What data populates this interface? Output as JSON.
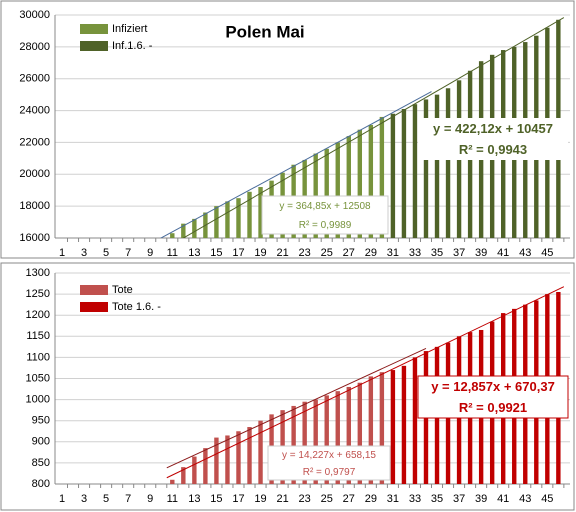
{
  "chart_data": [
    {
      "type": "bar",
      "title": "Polen Mai",
      "categories": [
        1,
        null,
        3,
        null,
        5,
        null,
        7,
        null,
        9,
        null,
        11,
        null,
        13,
        null,
        15,
        null,
        17,
        null,
        19,
        null,
        21,
        null,
        23,
        null,
        25,
        null,
        27,
        null,
        29,
        null,
        31,
        null,
        33,
        null,
        35,
        null,
        37,
        null,
        39,
        null,
        41,
        null,
        43,
        null,
        45,
        null
      ],
      "series": [
        {
          "name": "Infiziert",
          "color": "#77933c",
          "values": [
            null,
            null,
            null,
            null,
            null,
            null,
            null,
            null,
            null,
            null,
            16300,
            16900,
            17200,
            17600,
            18000,
            18300,
            18500,
            18900,
            19200,
            19600,
            20100,
            20600,
            20900,
            21300,
            21600,
            22000,
            22400,
            22800,
            23100,
            23600,
            null,
            null,
            null,
            null,
            null,
            null,
            null,
            null,
            null,
            null,
            null,
            null,
            null,
            null,
            null,
            null
          ]
        },
        {
          "name": "Inf.1.6. -",
          "color": "#4f6228",
          "values": [
            null,
            null,
            null,
            null,
            null,
            null,
            null,
            null,
            null,
            null,
            null,
            null,
            null,
            null,
            null,
            null,
            null,
            null,
            null,
            null,
            null,
            null,
            null,
            null,
            null,
            null,
            null,
            null,
            null,
            null,
            23800,
            24100,
            24400,
            24700,
            25000,
            25400,
            25900,
            26500,
            27100,
            27500,
            27800,
            28000,
            28300,
            28700,
            29200,
            29700
          ]
        }
      ],
      "ylim": [
        16000,
        30000
      ],
      "yticks": [
        16000,
        18000,
        20000,
        22000,
        24000,
        26000,
        28000,
        30000
      ],
      "grid": true,
      "legend": "upper left",
      "annotations": [
        [
          "y = 364,85x + 12508",
          "R² = 0,9989"
        ],
        [
          "y = 422,12x + 10457",
          "R² = 0,9943"
        ]
      ]
    },
    {
      "type": "bar",
      "categories": [
        1,
        null,
        3,
        null,
        5,
        null,
        7,
        null,
        9,
        null,
        11,
        null,
        13,
        null,
        15,
        null,
        17,
        null,
        19,
        null,
        21,
        null,
        23,
        null,
        25,
        null,
        27,
        null,
        29,
        null,
        31,
        null,
        33,
        null,
        35,
        null,
        37,
        null,
        39,
        null,
        41,
        null,
        43,
        null,
        45,
        null
      ],
      "series": [
        {
          "name": "Tote",
          "color": "#c0504d",
          "values": [
            null,
            null,
            null,
            null,
            null,
            null,
            null,
            null,
            null,
            null,
            810,
            840,
            865,
            885,
            910,
            915,
            925,
            935,
            950,
            965,
            975,
            985,
            995,
            1000,
            1010,
            1020,
            1030,
            1040,
            1055,
            1065,
            null,
            null,
            null,
            null,
            null,
            null,
            null,
            null,
            null,
            null,
            null,
            null,
            null,
            null,
            null,
            null
          ]
        },
        {
          "name": "Tote 1.6. -",
          "color": "#c00000",
          "values": [
            null,
            null,
            null,
            null,
            null,
            null,
            null,
            null,
            null,
            null,
            null,
            null,
            null,
            null,
            null,
            null,
            null,
            null,
            null,
            null,
            null,
            null,
            null,
            null,
            null,
            null,
            null,
            null,
            null,
            null,
            1070,
            1080,
            1100,
            1115,
            1125,
            1135,
            1150,
            1160,
            1165,
            1185,
            1205,
            1215,
            1225,
            1235,
            1250,
            1255
          ]
        }
      ],
      "ylim": [
        800,
        1300
      ],
      "yticks": [
        800,
        850,
        900,
        950,
        1000,
        1050,
        1100,
        1150,
        1200,
        1250,
        1300
      ],
      "grid": true,
      "legend": "upper left",
      "annotations": [
        [
          "y = 14,227x + 658,15",
          "R² = 0,9797"
        ],
        [
          "y = 12,857x + 670,37",
          "R² = 0,9921"
        ]
      ]
    }
  ]
}
